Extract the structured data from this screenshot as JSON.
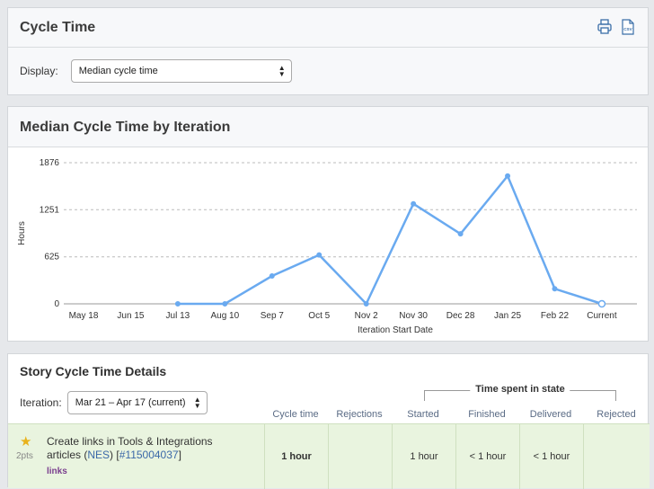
{
  "top_panel": {
    "title": "Cycle Time",
    "print_icon": "printer-icon",
    "csv_icon": "csv-file-icon",
    "display_label": "Display:",
    "display_value": "Median cycle time"
  },
  "chart_panel": {
    "title": "Median Cycle Time by Iteration"
  },
  "chart_data": {
    "type": "line",
    "xlabel": "Iteration Start Date",
    "ylabel": "Hours",
    "categories": [
      "May 18",
      "Jun 15",
      "Jul 13",
      "Aug 10",
      "Sep 7",
      "Oct 5",
      "Nov 2",
      "Nov 30",
      "Dec 28",
      "Jan 25",
      "Feb 22",
      "Current"
    ],
    "yticks": [
      "0",
      "625",
      "1251",
      "1876"
    ],
    "ylim": [
      0,
      1876
    ],
    "grid": true,
    "series": [
      {
        "values": [
          null,
          null,
          0,
          0,
          370,
          650,
          0,
          1330,
          930,
          1700,
          200,
          0
        ],
        "color": "#6aaaf0"
      }
    ]
  },
  "details": {
    "title": "Story Cycle Time Details",
    "iteration_label": "Iteration:",
    "iteration_value": "Mar 21 – Apr 17 (current)",
    "group_header": "Time spent in state",
    "columns": [
      "Cycle time",
      "Rejections",
      "Started",
      "Finished",
      "Delivered",
      "Rejected"
    ],
    "story": {
      "points": "2pts",
      "name": "Create links in Tools & Integrations articles",
      "project_open": "(",
      "project": "NES",
      "project_close": ")",
      "id_open": "[",
      "id": "#115004037",
      "id_close": "]",
      "label": "links",
      "cycle_time": "1 hour",
      "rejections": "",
      "started": "1 hour",
      "finished": "< 1 hour",
      "delivered": "< 1 hour",
      "rejected": ""
    }
  }
}
